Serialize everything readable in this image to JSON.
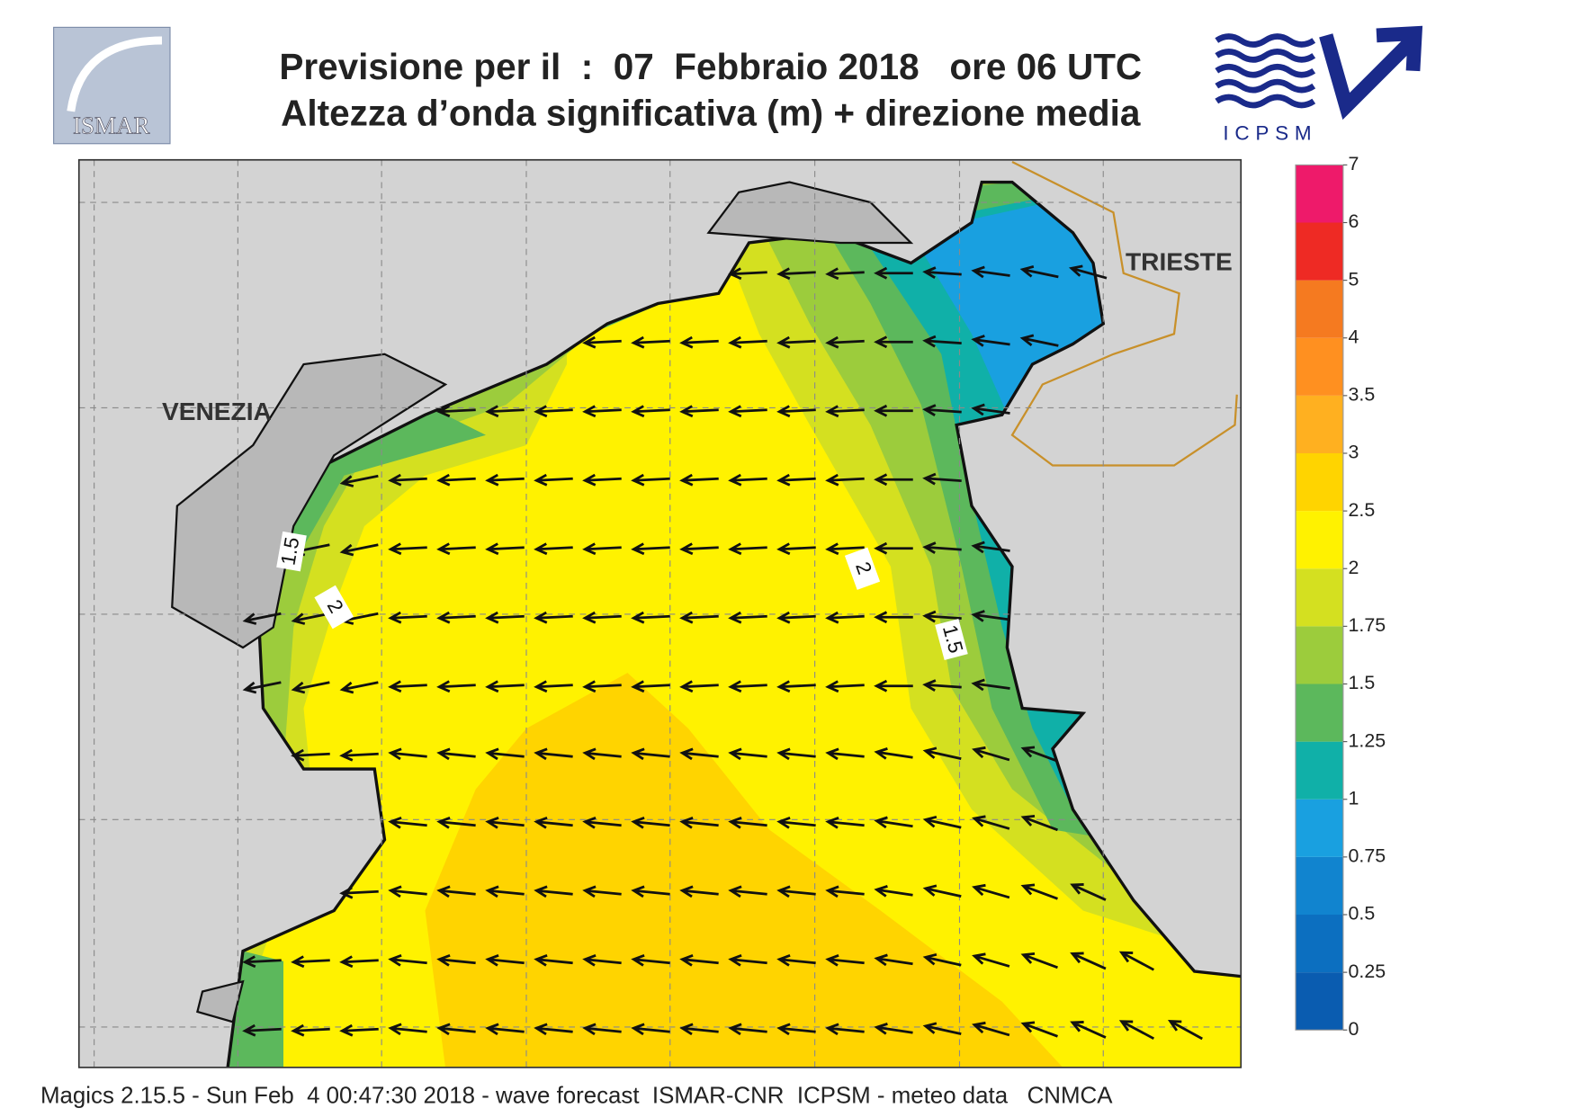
{
  "header": {
    "title_line1": "Previsione per il  :  07  Febbraio 2018   ore 06 UTC",
    "title_line2": "Altezza d’onda significativa (m) + direzione media",
    "logo_left": "ISMAR",
    "logo_right": "ICPSM"
  },
  "map": {
    "places": [
      "VENEZIA",
      "TRIESTE"
    ],
    "contour_labels": [
      "1.5",
      "2",
      "2",
      "1.5"
    ]
  },
  "colorbar": {
    "levels": [
      0,
      0.25,
      0.5,
      0.75,
      1,
      1.25,
      1.5,
      1.75,
      2,
      2.5,
      3,
      3.5,
      4,
      5,
      6,
      7
    ],
    "colors": [
      "#0a5cb0",
      "#0c6fc0",
      "#1184cf",
      "#19a0e0",
      "#10b0a8",
      "#5cb85c",
      "#9ccc3c",
      "#d4e020",
      "#fff200",
      "#ffd400",
      "#ffb020",
      "#ff9020",
      "#f57a20",
      "#ee2a24",
      "#ee1a6a"
    ]
  },
  "footer": "Magics 2.15.5 - Sun Feb  4 00:47:30 2018 - wave forecast  ISMAR-CNR  ICPSM - meteo data   CNMCA"
}
